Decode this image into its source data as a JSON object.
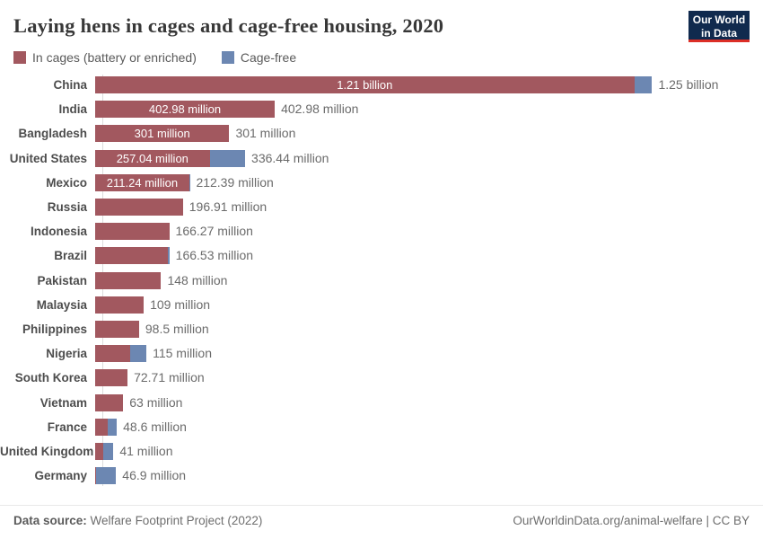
{
  "title": "Laying hens in cages and cage-free housing, 2020",
  "logo": {
    "line1": "Our World",
    "line2": "in Data"
  },
  "colors": {
    "cages": "#a2585f",
    "cagefree": "#6c87b2",
    "logo_bg": "#102a4e",
    "logo_stripe": "#dc2e26"
  },
  "legend": [
    {
      "label": "In cages (battery or enriched)",
      "color": "#a2585f"
    },
    {
      "label": "Cage-free",
      "color": "#6c87b2"
    }
  ],
  "chart_data": {
    "type": "bar",
    "orientation": "horizontal",
    "stacked": true,
    "unit": "hens",
    "value_unit_millions": true,
    "xlim_millions": [
      0,
      1250
    ],
    "grid": false,
    "legend_position": "top-left",
    "series_names": [
      "In cages (battery or enriched)",
      "Cage-free"
    ],
    "rows": [
      {
        "country": "China",
        "cages_million": 1209.7,
        "cagefree_million": 40.0,
        "bar_label": "1.21 billion",
        "total_label": "1.25 billion"
      },
      {
        "country": "India",
        "cages_million": 402.98,
        "cagefree_million": 0,
        "bar_label": "402.98 million",
        "total_label": "402.98 million"
      },
      {
        "country": "Bangladesh",
        "cages_million": 301,
        "cagefree_million": 0,
        "bar_label": "301 million",
        "total_label": "301 million"
      },
      {
        "country": "United States",
        "cages_million": 257.04,
        "cagefree_million": 79.4,
        "bar_label": "257.04 million",
        "total_label": "336.44 million"
      },
      {
        "country": "Mexico",
        "cages_million": 211.24,
        "cagefree_million": 1.15,
        "bar_label": "211.24 million",
        "total_label": "212.39 million"
      },
      {
        "country": "Russia",
        "cages_million": 196.91,
        "cagefree_million": 0,
        "bar_label": null,
        "total_label": "196.91 million"
      },
      {
        "country": "Indonesia",
        "cages_million": 166.27,
        "cagefree_million": 0,
        "bar_label": null,
        "total_label": "166.27 million"
      },
      {
        "country": "Brazil",
        "cages_million": 162.5,
        "cagefree_million": 4.03,
        "bar_label": null,
        "total_label": "166.53 million"
      },
      {
        "country": "Pakistan",
        "cages_million": 148,
        "cagefree_million": 0,
        "bar_label": null,
        "total_label": "148 million"
      },
      {
        "country": "Malaysia",
        "cages_million": 109,
        "cagefree_million": 0,
        "bar_label": null,
        "total_label": "109 million"
      },
      {
        "country": "Philippines",
        "cages_million": 98.5,
        "cagefree_million": 0,
        "bar_label": null,
        "total_label": "98.5 million"
      },
      {
        "country": "Nigeria",
        "cages_million": 79,
        "cagefree_million": 36,
        "bar_label": null,
        "total_label": "115 million"
      },
      {
        "country": "South Korea",
        "cages_million": 72.71,
        "cagefree_million": 0,
        "bar_label": null,
        "total_label": "72.71 million"
      },
      {
        "country": "Vietnam",
        "cages_million": 63,
        "cagefree_million": 0,
        "bar_label": null,
        "total_label": "63 million"
      },
      {
        "country": "France",
        "cages_million": 29,
        "cagefree_million": 19.6,
        "bar_label": null,
        "total_label": "48.6 million"
      },
      {
        "country": "United Kingdom",
        "cages_million": 17.6,
        "cagefree_million": 23.4,
        "bar_label": null,
        "total_label": "41 million"
      },
      {
        "country": "Germany",
        "cages_million": 2.5,
        "cagefree_million": 44.4,
        "bar_label": null,
        "total_label": "46.9 million"
      }
    ]
  },
  "footer": {
    "source_prefix": "Data source:",
    "source": "Welfare Footprint Project (2022)",
    "credit": "OurWorldinData.org/animal-welfare | CC BY"
  }
}
